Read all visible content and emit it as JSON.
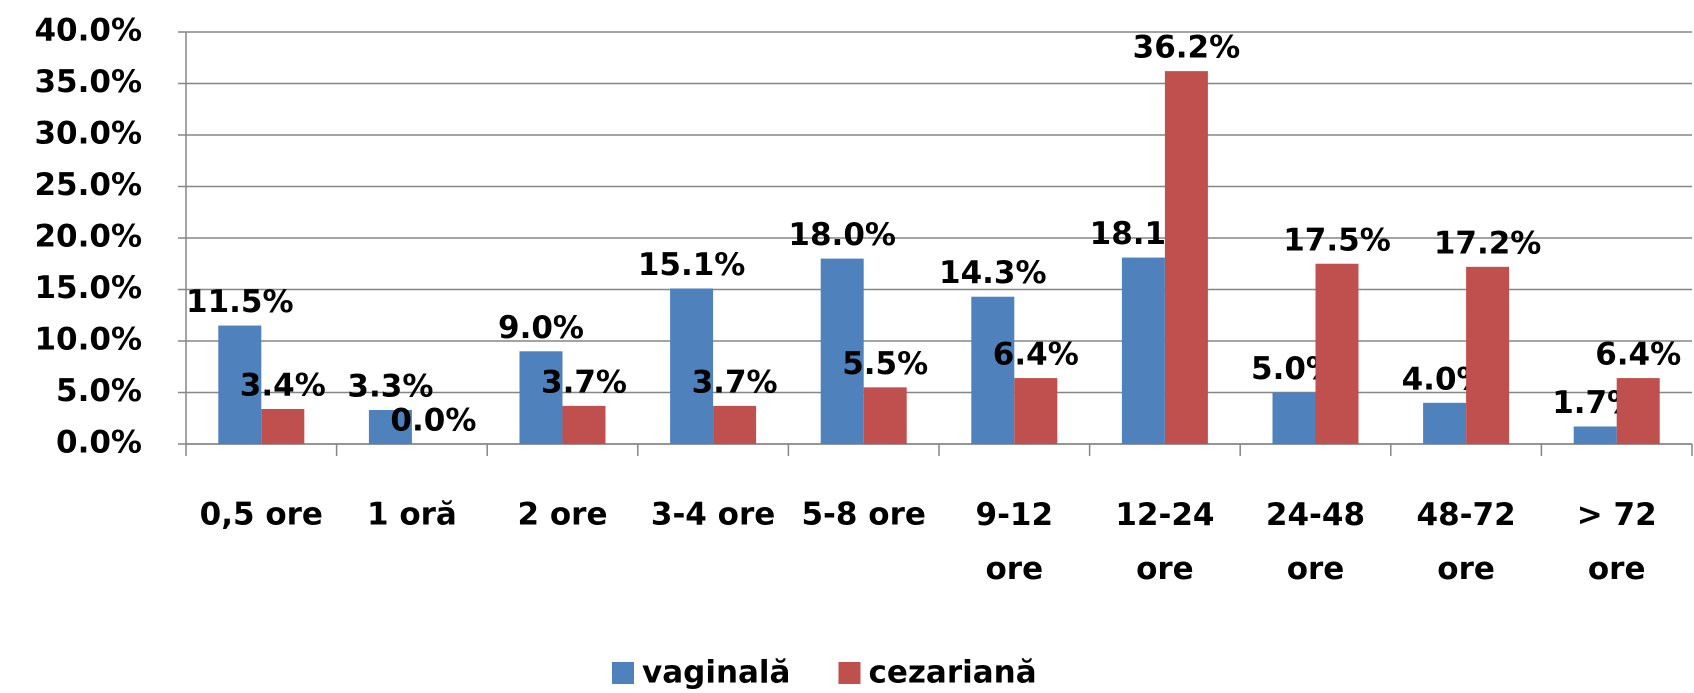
{
  "chart_data": {
    "type": "bar",
    "categories": [
      "0,5 ore",
      "1 oră",
      "2 ore",
      "3-4 ore",
      "5-8 ore",
      "9-12 ore",
      "12-24 ore",
      "24-48 ore",
      "48-72 ore",
      "> 72 ore"
    ],
    "series": [
      {
        "name": "vaginală",
        "color": "#4f81bd",
        "values": [
          11.5,
          3.3,
          9.0,
          15.1,
          18.0,
          14.3,
          18.1,
          5.0,
          4.0,
          1.7
        ],
        "value_labels": [
          "11.5%",
          "3.3%",
          "9.0%",
          "15.1%",
          "18.0%",
          "14.3%",
          "18.1%",
          "5.0%",
          "4.0%",
          "1.7%"
        ]
      },
      {
        "name": "cezariană",
        "color": "#c0504d",
        "values": [
          3.4,
          0.0,
          3.7,
          3.7,
          5.5,
          6.4,
          36.2,
          17.5,
          17.2,
          6.4
        ],
        "value_labels": [
          "3.4%",
          "0.0%",
          "3.7%",
          "3.7%",
          "5.5%",
          "6.4%",
          "36.2%",
          "17.5%",
          "17.2%",
          "6.4%"
        ]
      }
    ],
    "ylim": [
      0,
      40
    ],
    "yticks": [
      {
        "value": 0,
        "label": "0.0%"
      },
      {
        "value": 5,
        "label": "5.0%"
      },
      {
        "value": 10,
        "label": "10.0%"
      },
      {
        "value": 15,
        "label": "15.0%"
      },
      {
        "value": 20,
        "label": "20.0%"
      },
      {
        "value": 25,
        "label": "25.0%"
      },
      {
        "value": 30,
        "label": "30.0%"
      },
      {
        "value": 35,
        "label": "35.0%"
      },
      {
        "value": 40,
        "label": "40.0%"
      }
    ],
    "grid": true,
    "legend": "bottom"
  }
}
